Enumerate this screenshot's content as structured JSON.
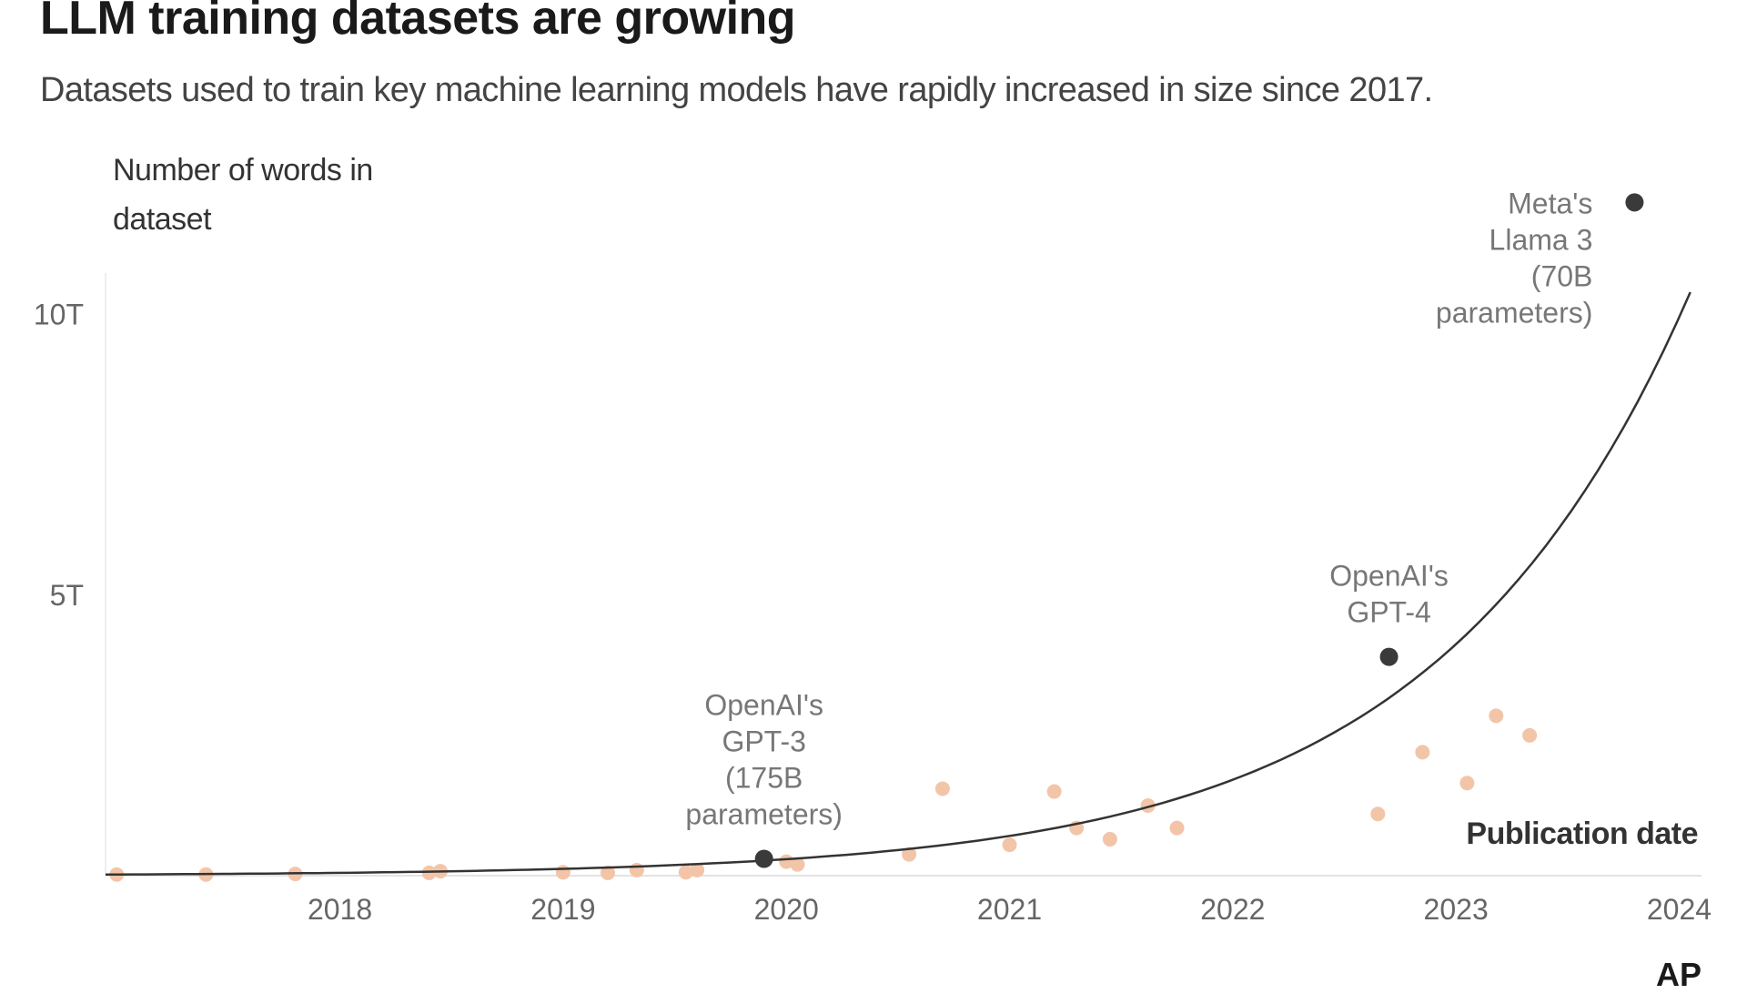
{
  "chart_data": {
    "type": "scatter",
    "title": "LLM training datasets are growing",
    "subtitle": "Datasets used to train key machine learning models have rapidly increased in size since 2017.",
    "ylabel": "Number of words in dataset",
    "xlabel": "Publication date",
    "x_ticks": [
      "2018",
      "2019",
      "2020",
      "2021",
      "2022",
      "2023",
      "2024"
    ],
    "y_ticks": [
      {
        "label": "10T",
        "value": 10
      },
      {
        "label": "5T",
        "value": 5
      }
    ],
    "xlim": [
      2017.45,
      2024.6
    ],
    "ylim": [
      0,
      12.2
    ],
    "grid": false,
    "colors": {
      "highlight": "#3a3a3a",
      "other": "#f3c5a8",
      "trend": "#333333"
    },
    "highlighted": [
      {
        "x": 2020.4,
        "y": 0.3,
        "label": "OpenAI's GPT-3 (175B parameters)"
      },
      {
        "x": 2023.2,
        "y": 3.9,
        "label": "OpenAI's GPT-4"
      },
      {
        "x": 2024.3,
        "y": 12.0,
        "label": "Meta's Llama 3 (70B parameters)"
      }
    ],
    "points": [
      {
        "x": 2017.5,
        "y": 0.02
      },
      {
        "x": 2017.9,
        "y": 0.02
      },
      {
        "x": 2018.3,
        "y": 0.03
      },
      {
        "x": 2018.9,
        "y": 0.05
      },
      {
        "x": 2018.95,
        "y": 0.08
      },
      {
        "x": 2019.5,
        "y": 0.06
      },
      {
        "x": 2019.7,
        "y": 0.05
      },
      {
        "x": 2019.83,
        "y": 0.1
      },
      {
        "x": 2020.05,
        "y": 0.06
      },
      {
        "x": 2020.1,
        "y": 0.1
      },
      {
        "x": 2020.5,
        "y": 0.25
      },
      {
        "x": 2020.55,
        "y": 0.2
      },
      {
        "x": 2021.05,
        "y": 0.38
      },
      {
        "x": 2021.2,
        "y": 1.55
      },
      {
        "x": 2021.5,
        "y": 0.55
      },
      {
        "x": 2021.7,
        "y": 1.5
      },
      {
        "x": 2021.8,
        "y": 0.85
      },
      {
        "x": 2021.95,
        "y": 0.65
      },
      {
        "x": 2022.12,
        "y": 1.25
      },
      {
        "x": 2022.25,
        "y": 0.85
      },
      {
        "x": 2023.15,
        "y": 1.1
      },
      {
        "x": 2023.35,
        "y": 2.2
      },
      {
        "x": 2023.55,
        "y": 1.65
      },
      {
        "x": 2023.68,
        "y": 2.85
      },
      {
        "x": 2023.83,
        "y": 2.5
      }
    ],
    "trend": {
      "x_start": 2017.45,
      "x_end": 2024.55,
      "y_start": 0.02,
      "y_end": 10.4
    }
  },
  "footer": {
    "logo": "AP"
  }
}
